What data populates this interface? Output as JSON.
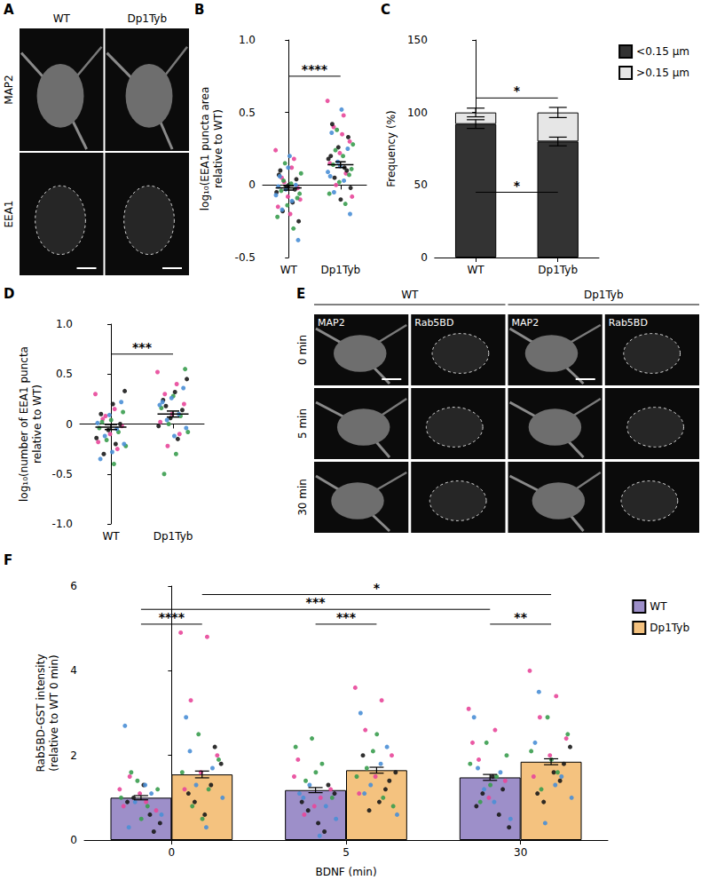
{
  "chart_data": [
    {
      "panel": "B",
      "type": "scatter",
      "categories": [
        "WT",
        "Dp1Tyb"
      ],
      "y_label": "log₁₀(EEA1 puncta area relative to WT)",
      "ylim": [
        -0.5,
        1
      ],
      "yticks": [
        -0.5,
        0,
        0.5,
        {
          "value": 1,
          "label": "1.0"
        }
      ],
      "grid": false,
      "mean": [
        -0.02,
        0.14
      ],
      "sem": [
        0.015,
        0.02
      ],
      "series": [
        {
          "color": "#e8479a",
          "values": [
            [
              0.24,
              0.12,
              0.05,
              -0.02,
              -0.08,
              -0.15,
              0.18,
              0.02,
              -0.1,
              -0.2
            ],
            [
              0.58,
              0.48,
              0.4,
              0.3,
              0.22,
              0.15,
              0.08,
              0.0,
              -0.08,
              0.35
            ]
          ]
        },
        {
          "color": "#1a1a1a",
          "values": [
            [
              0.1,
              0.04,
              -0.01,
              -0.05,
              -0.12,
              -0.18,
              -0.25,
              0.0,
              0.07,
              -0.03
            ],
            [
              0.42,
              0.33,
              0.26,
              0.18,
              0.12,
              0.05,
              -0.02,
              -0.1,
              0.2,
              0.1
            ]
          ]
        },
        {
          "color": "#3a9d4f",
          "values": [
            [
              0.15,
              0.08,
              0.01,
              -0.04,
              -0.09,
              -0.14,
              -0.22,
              -0.3,
              0.03,
              -0.06
            ],
            [
              0.38,
              0.28,
              0.2,
              0.14,
              0.07,
              0.02,
              -0.06,
              -0.13,
              0.24,
              0.11
            ]
          ]
        },
        {
          "color": "#4a8fd6",
          "values": [
            [
              0.2,
              0.06,
              0.0,
              -0.03,
              -0.07,
              -0.11,
              -0.17,
              -0.38,
              0.12,
              -0.01
            ],
            [
              0.52,
              0.36,
              0.25,
              0.16,
              0.09,
              0.03,
              -0.05,
              -0.2,
              0.13,
              0.06
            ]
          ]
        }
      ],
      "significance": [
        {
          "from": 0,
          "to": 1,
          "y": 0.75,
          "label": "****"
        }
      ]
    },
    {
      "panel": "C",
      "type": "bar",
      "stacked": true,
      "categories": [
        "WT",
        "Dp1Tyb"
      ],
      "y_label": "Frequency (%)",
      "ylim": [
        0,
        150
      ],
      "yticks": [
        0,
        50,
        100,
        150
      ],
      "grid": false,
      "legend": "right",
      "series": [
        {
          "name": "<0.15 µm",
          "color": "#333333",
          "values": [
            92,
            80
          ],
          "sem": [
            3,
            3
          ]
        },
        {
          "name": ">0.15 µm",
          "color": "#e6e6e6",
          "values": [
            8,
            20
          ],
          "sem": [
            3,
            3.5
          ]
        }
      ],
      "significance": [
        {
          "from": 0,
          "to": 1,
          "y": 110,
          "label": "*"
        },
        {
          "from": 0,
          "to": 1,
          "y": 45,
          "label": "*"
        }
      ]
    },
    {
      "panel": "D",
      "type": "scatter",
      "categories": [
        "WT",
        "Dp1Tyb"
      ],
      "y_label": "log₁₀(number of EEA1 puncta relative to WT)",
      "ylim": [
        -1,
        1
      ],
      "yticks": [
        {
          "value": -1,
          "label": "-1.0"
        },
        -0.5,
        0,
        0.5,
        {
          "value": 1,
          "label": "1.0"
        }
      ],
      "grid": false,
      "mean": [
        -0.03,
        0.1
      ],
      "sem": [
        0.025,
        0.03
      ],
      "series": [
        {
          "color": "#e8479a",
          "values": [
            [
              0.3,
              0.15,
              0.05,
              -0.02,
              -0.1,
              -0.18,
              -0.25,
              0.08
            ],
            [
              0.52,
              0.4,
              0.3,
              0.2,
              0.1,
              0.02,
              -0.1,
              -0.22
            ]
          ]
        },
        {
          "color": "#1a1a1a",
          "values": [
            [
              0.33,
              0.2,
              0.1,
              0.0,
              -0.06,
              -0.14,
              -0.2,
              -0.3
            ],
            [
              0.45,
              0.32,
              0.24,
              0.14,
              0.06,
              -0.02,
              -0.15,
              0.18
            ]
          ]
        },
        {
          "color": "#3a9d4f",
          "values": [
            [
              0.12,
              0.04,
              -0.04,
              -0.08,
              -0.16,
              -0.22,
              -0.4,
              0.02
            ],
            [
              0.55,
              0.28,
              0.16,
              0.08,
              0.0,
              -0.08,
              -0.3,
              -0.5
            ]
          ]
        },
        {
          "color": "#4a8fd6",
          "values": [
            [
              0.22,
              0.09,
              0.01,
              -0.05,
              -0.12,
              -0.2,
              -0.28,
              -0.35
            ],
            [
              0.36,
              0.26,
              0.19,
              0.1,
              0.04,
              -0.04,
              -0.12,
              0.22
            ]
          ]
        }
      ],
      "significance": [
        {
          "from": 0,
          "to": 1,
          "y": 0.7,
          "label": "***"
        }
      ]
    },
    {
      "panel": "F",
      "type": "bar",
      "categories": [
        "0",
        "5",
        "30"
      ],
      "x_label": "BDNF (min)",
      "y_label": "Rab5BD-GST intensity (relative to WT 0 min)",
      "ylim": [
        0,
        6
      ],
      "yticks": [
        0,
        2,
        4,
        6
      ],
      "grid": false,
      "legend": "right",
      "series": [
        {
          "name": "WT",
          "color": "#9d8fc9",
          "values": [
            1.0,
            1.18,
            1.48
          ],
          "sem": [
            0.05,
            0.06,
            0.07
          ],
          "points": [
            {
              "color": "#e8479a",
              "values": [
                [
                  1.2,
                  0.9,
                  1.5,
                  0.7,
                  1.1,
                  0.8
                ],
                [
                  1.5,
                  1.0,
                  0.6,
                  1.2,
                  0.8,
                  1.9
                ],
                [
                  3.1,
                  2.6,
                  1.9,
                  1.4,
                  1.0,
                  2.3
                ]
              ]
            },
            {
              "color": "#1a1a1a",
              "values": [
                [
                  0.6,
                  1.0,
                  0.4,
                  1.3,
                  0.9,
                  0.2
                ],
                [
                  0.2,
                  0.7,
                  1.1,
                  0.4,
                  0.9,
                  1.3
                ],
                [
                  0.6,
                  1.1,
                  0.3,
                  1.5,
                  0.8,
                  1.2
                ]
              ]
            },
            {
              "color": "#3a9d4f",
              "values": [
                [
                  1.4,
                  1.0,
                  0.8,
                  1.6,
                  1.2,
                  0.5
                ],
                [
                  2.4,
                  2.2,
                  1.8,
                  1.4,
                  1.0,
                  1.6
                ],
                [
                  2.3,
                  1.8,
                  1.5,
                  0.9,
                  2.0,
                  1.3
                ]
              ]
            },
            {
              "color": "#4a8fd6",
              "values": [
                [
                  2.7,
                  1.1,
                  0.9,
                  0.6,
                  1.3,
                  0.3
                ],
                [
                  1.1,
                  0.8,
                  1.3,
                  0.5,
                  0.1,
                  1.0
                ],
                [
                  2.9,
                  1.6,
                  1.2,
                  0.5,
                  0.9,
                  1.7
                ]
              ]
            }
          ]
        },
        {
          "name": "Dp1Tyb",
          "color": "#f4c27f",
          "values": [
            1.55,
            1.65,
            1.85
          ],
          "sem": [
            0.08,
            0.07,
            0.07
          ],
          "points": [
            {
              "color": "#e8479a",
              "values": [
                [
                  4.9,
                  4.8,
                  3.3,
                  2.0,
                  1.6,
                  1.2
                ],
                [
                  3.6,
                  3.3,
                  2.6,
                  2.0,
                  1.5,
                  1.1
                ],
                [
                  4.0,
                  3.4,
                  2.9,
                  2.4,
                  2.0,
                  1.5
                ]
              ]
            },
            {
              "color": "#1a1a1a",
              "values": [
                [
                  1.3,
                  0.9,
                  1.8,
                  0.6,
                  1.1,
                  2.2
                ],
                [
                  1.2,
                  0.7,
                  1.6,
                  0.9,
                  2.0,
                  1.4
                ],
                [
                  1.4,
                  0.9,
                  2.2,
                  1.6,
                  1.1,
                  1.8
                ]
              ]
            },
            {
              "color": "#3a9d4f",
              "values": [
                [
                  2.5,
                  1.6,
                  1.2,
                  0.8,
                  1.9,
                  0.5
                ],
                [
                  2.1,
                  1.5,
                  1.0,
                  1.7,
                  0.8,
                  2.5
                ],
                [
                  2.9,
                  2.1,
                  1.6,
                  1.2,
                  2.5,
                  1.9
                ]
              ]
            },
            {
              "color": "#4a8fd6",
              "values": [
                [
                  2.9,
                  1.7,
                  1.3,
                  1.0,
                  0.3,
                  2.1
                ],
                [
                  3.0,
                  2.2,
                  1.3,
                  0.6,
                  1.8,
                  1.1
                ],
                [
                  2.3,
                  1.5,
                  0.4,
                  1.0,
                  1.3,
                  3.5
                ]
              ]
            }
          ]
        }
      ],
      "significance": [
        {
          "from": [
            0,
            0
          ],
          "to": [
            0,
            1
          ],
          "y": 5.1,
          "label": "****"
        },
        {
          "from": [
            1,
            0
          ],
          "to": [
            1,
            1
          ],
          "y": 5.1,
          "label": "***"
        },
        {
          "from": [
            2,
            0
          ],
          "to": [
            2,
            1
          ],
          "y": 5.1,
          "label": "**"
        },
        {
          "from": [
            0,
            0
          ],
          "to": [
            2,
            0
          ],
          "y": 5.45,
          "label": "***"
        },
        {
          "from": [
            0,
            1
          ],
          "to": [
            2,
            1
          ],
          "y": 5.8,
          "label": "*"
        }
      ]
    }
  ],
  "images": [
    {
      "panel": "A",
      "columns": [
        "WT",
        "Dp1Tyb"
      ],
      "rows": [
        "MAP2",
        "EEA1"
      ]
    },
    {
      "panel": "E",
      "column_groups": [
        "WT",
        "Dp1Tyb"
      ],
      "channels": [
        "MAP2",
        "Rab5BD"
      ],
      "rows": [
        "0 min",
        "5 min",
        "30 min"
      ]
    }
  ]
}
